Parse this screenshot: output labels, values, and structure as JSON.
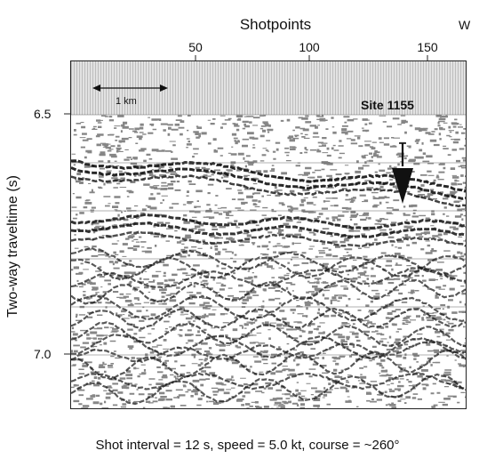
{
  "figure": {
    "x_axis_title": "Shotpoints",
    "x_ticks": [
      "50",
      "100",
      "150"
    ],
    "direction_label": "W",
    "y_axis_title": "Two-way traveltime (s)",
    "y_ticks": [
      "6.5",
      "7.0"
    ],
    "scale_bar_label": "1 km",
    "site_label": "Site 1155",
    "caption": "Shot interval = 12 s, speed = 5.0 kt, course = ~260°",
    "colors": {
      "ink": "#111111",
      "water": "#d8d8d8",
      "paper": "#ffffff"
    }
  }
}
